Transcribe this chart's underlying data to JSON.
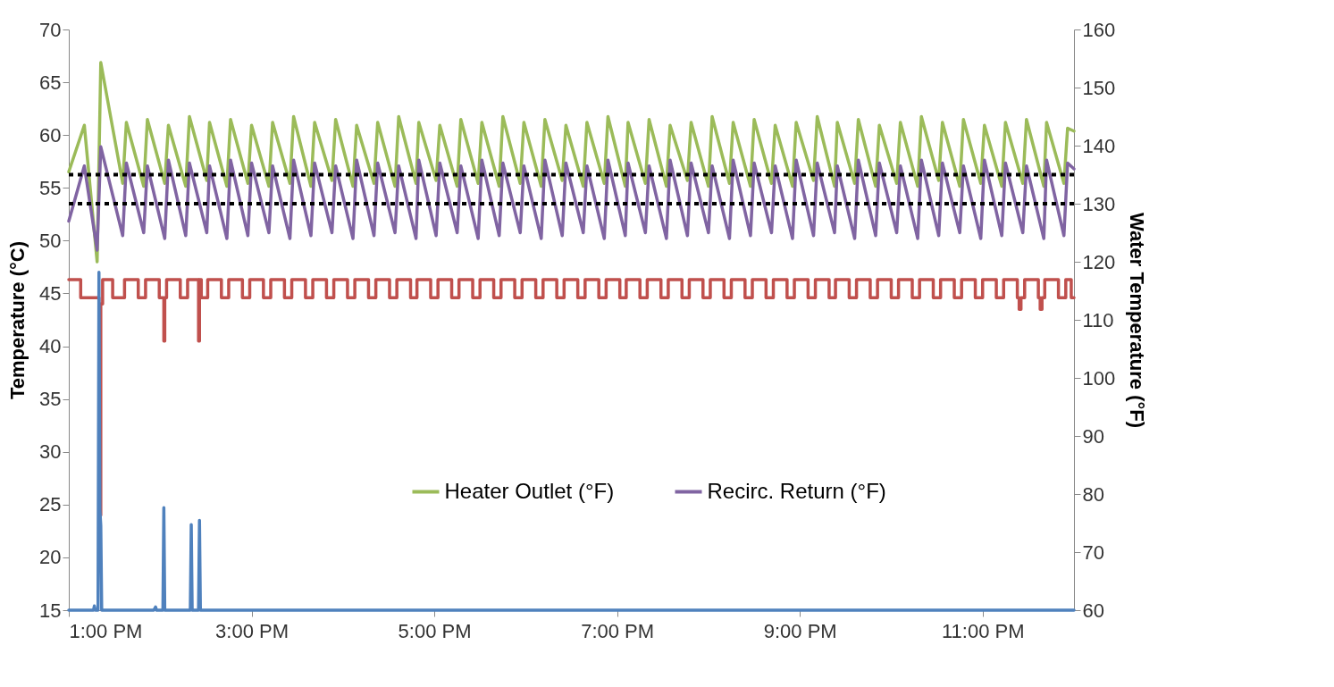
{
  "chart_data": {
    "type": "line",
    "ylabel": "Temperature (°C)",
    "y2label": "Water Temperature (°F)",
    "xlim": [
      13,
      24
    ],
    "xticks": [
      {
        "value": 13,
        "label": "1:00 PM"
      },
      {
        "value": 15,
        "label": "3:00 PM"
      },
      {
        "value": 17,
        "label": "5:00 PM"
      },
      {
        "value": 19,
        "label": "7:00 PM"
      },
      {
        "value": 21,
        "label": "9:00 PM"
      },
      {
        "value": 23,
        "label": "11:00 PM"
      }
    ],
    "ylim": [
      15,
      70
    ],
    "yticks": [
      15,
      20,
      25,
      30,
      35,
      40,
      45,
      50,
      55,
      60,
      65,
      70
    ],
    "y2lim": [
      60,
      160
    ],
    "y2ticks": [
      60,
      70,
      80,
      90,
      100,
      110,
      120,
      130,
      140,
      150,
      160
    ],
    "legend": "bottom",
    "series": [
      {
        "type": "step",
        "color": "#c0504d",
        "x": [
          13.0,
          13.13,
          13.33,
          13.35,
          13.37,
          13.48,
          13.61,
          13.76,
          13.84,
          13.99,
          14.04,
          14.05,
          14.07,
          14.22,
          14.3,
          14.42,
          14.43,
          14.45,
          14.52,
          14.67,
          14.75,
          14.9,
          14.98,
          15.13,
          15.21,
          15.36,
          15.44,
          15.59,
          15.67,
          15.82,
          15.9,
          16.05,
          16.13,
          16.28,
          16.36,
          16.51,
          16.59,
          16.74,
          16.81,
          16.96,
          17.04,
          17.19,
          17.27,
          17.42,
          17.5,
          17.65,
          17.73,
          17.88,
          17.96,
          18.11,
          18.19,
          18.34,
          18.42,
          18.57,
          18.65,
          18.8,
          18.88,
          19.03,
          19.1,
          19.25,
          19.33,
          19.48,
          19.56,
          19.71,
          19.79,
          19.94,
          20.02,
          20.17,
          20.25,
          20.4,
          20.48,
          20.63,
          20.71,
          20.86,
          20.94,
          21.09,
          21.17,
          21.32,
          21.39,
          21.54,
          21.62,
          21.77,
          21.85,
          22.0,
          22.08,
          22.23,
          22.31,
          22.46,
          22.54,
          22.69,
          22.77,
          22.92,
          23.0,
          23.15,
          23.23,
          23.38,
          23.4,
          23.42,
          23.46,
          23.61,
          23.63,
          23.65,
          23.68,
          23.83,
          23.91,
          23.97,
          24.0
        ],
        "values": [
          46.3,
          44.6,
          24,
          44,
          46.3,
          44.6,
          46.3,
          44.6,
          46.3,
          44.6,
          40.5,
          44.6,
          46.3,
          44.6,
          46.3,
          40.5,
          46.3,
          44.6,
          46.3,
          44.6,
          46.3,
          44.6,
          46.3,
          44.6,
          46.3,
          44.6,
          46.3,
          44.6,
          46.3,
          44.6,
          46.3,
          44.6,
          46.3,
          44.6,
          46.3,
          44.6,
          46.3,
          44.6,
          46.3,
          44.6,
          46.3,
          44.6,
          46.3,
          44.6,
          46.3,
          44.6,
          46.3,
          44.6,
          46.3,
          44.6,
          46.3,
          44.6,
          46.3,
          44.6,
          46.3,
          44.6,
          46.3,
          44.6,
          46.3,
          44.6,
          46.3,
          44.6,
          46.3,
          44.6,
          46.3,
          44.6,
          46.3,
          44.6,
          46.3,
          44.6,
          46.3,
          44.6,
          46.3,
          44.6,
          46.3,
          44.6,
          46.3,
          44.6,
          46.3,
          44.6,
          46.3,
          44.6,
          46.3,
          44.6,
          46.3,
          44.6,
          46.3,
          44.6,
          46.3,
          44.6,
          46.3,
          44.6,
          46.3,
          44.6,
          46.3,
          44.6,
          43.5,
          44.6,
          46.3,
          44.6,
          43.5,
          44.6,
          46.3,
          44.6,
          46.3,
          44.6,
          44.6
        ]
      },
      {
        "color": "#4f81bd",
        "x": [
          13.0,
          13.27,
          13.28,
          13.29,
          13.32,
          13.33,
          13.34,
          13.35,
          13.36,
          13.93,
          13.95,
          13.96,
          14.03,
          14.04,
          14.05,
          14.33,
          14.34,
          14.35,
          14.42,
          14.43,
          14.44,
          24.0
        ],
        "values": [
          15,
          15,
          15.4,
          15,
          15,
          47,
          24.5,
          23,
          15,
          15,
          15.3,
          15,
          15,
          24.7,
          15,
          15,
          23.1,
          15,
          15,
          23.5,
          15,
          15
        ]
      },
      {
        "name": "Heater Outlet (°F)",
        "axis": "y2",
        "color": "#9bbb59",
        "x": [
          13.0,
          13.17,
          13.31,
          13.35,
          13.59,
          13.63,
          13.82,
          13.86,
          14.05,
          14.09,
          14.28,
          14.32,
          14.51,
          14.54,
          14.73,
          14.77,
          14.96,
          15.0,
          15.19,
          15.23,
          15.42,
          15.46,
          15.65,
          15.69,
          15.88,
          15.92,
          16.11,
          16.15,
          16.34,
          16.38,
          16.57,
          16.61,
          16.8,
          16.83,
          17.02,
          17.06,
          17.25,
          17.29,
          17.48,
          17.52,
          17.71,
          17.75,
          17.94,
          17.98,
          18.17,
          18.21,
          18.4,
          18.44,
          18.63,
          18.67,
          18.86,
          18.9,
          19.09,
          19.12,
          19.31,
          19.35,
          19.54,
          19.58,
          19.77,
          19.81,
          20.0,
          20.04,
          20.23,
          20.27,
          20.46,
          20.5,
          20.69,
          20.73,
          20.92,
          20.96,
          21.15,
          21.19,
          21.38,
          21.41,
          21.6,
          21.64,
          21.83,
          21.87,
          22.06,
          22.1,
          22.29,
          22.33,
          22.52,
          22.56,
          22.75,
          22.79,
          22.98,
          23.02,
          23.21,
          23.25,
          23.44,
          23.48,
          23.67,
          23.7,
          23.89,
          23.93,
          24.0
        ],
        "values": [
          135.5,
          143.5,
          120,
          154.3,
          133.5,
          144,
          133,
          144.5,
          133.5,
          143.5,
          133,
          145,
          134,
          144,
          133,
          144.5,
          133.5,
          143.5,
          133,
          144,
          133.5,
          145,
          133,
          144,
          134,
          144.5,
          133,
          143.5,
          133.5,
          144,
          133,
          145,
          133.5,
          144,
          134,
          143.5,
          133,
          144.5,
          133.5,
          144,
          133,
          145,
          133.5,
          144,
          133,
          144.5,
          134,
          143.5,
          133,
          144,
          133.5,
          145,
          133,
          144,
          133.5,
          144.5,
          133,
          143.5,
          134,
          144,
          133,
          145,
          133.5,
          144,
          133,
          144.5,
          133.5,
          143.5,
          133,
          144,
          134,
          145,
          133,
          144,
          133.5,
          144.5,
          133,
          143.5,
          133.5,
          144,
          133,
          145,
          134,
          144,
          133,
          144.5,
          133.5,
          143.5,
          133,
          144,
          133.5,
          144.5,
          133,
          144,
          133.5,
          143,
          142.5
        ]
      },
      {
        "name": "Recirc. Return (°F)",
        "axis": "y2",
        "color": "#8064a2",
        "x": [
          13.0,
          13.17,
          13.31,
          13.35,
          13.59,
          13.63,
          13.82,
          13.86,
          14.05,
          14.09,
          14.28,
          14.32,
          14.51,
          14.54,
          14.73,
          14.77,
          14.96,
          15.0,
          15.19,
          15.23,
          15.42,
          15.46,
          15.65,
          15.69,
          15.88,
          15.92,
          16.11,
          16.15,
          16.34,
          16.38,
          16.57,
          16.61,
          16.8,
          16.83,
          17.02,
          17.06,
          17.25,
          17.29,
          17.48,
          17.52,
          17.71,
          17.75,
          17.94,
          17.98,
          18.17,
          18.21,
          18.4,
          18.44,
          18.63,
          18.67,
          18.86,
          18.9,
          19.09,
          19.12,
          19.31,
          19.35,
          19.54,
          19.58,
          19.77,
          19.81,
          20.0,
          20.04,
          20.23,
          20.27,
          20.46,
          20.5,
          20.69,
          20.73,
          20.92,
          20.96,
          21.15,
          21.19,
          21.38,
          21.41,
          21.6,
          21.64,
          21.83,
          21.87,
          22.06,
          22.1,
          22.29,
          22.33,
          22.52,
          22.56,
          22.75,
          22.79,
          22.98,
          23.02,
          23.21,
          23.25,
          23.44,
          23.48,
          23.67,
          23.7,
          23.89,
          23.93,
          24.0
        ],
        "values": [
          127,
          136.5,
          122,
          139.8,
          124.5,
          137,
          125,
          136.5,
          124,
          137.5,
          124.5,
          137,
          125,
          136.5,
          124,
          137.5,
          124.5,
          137,
          125,
          136.5,
          124,
          137.5,
          124.5,
          137,
          125,
          136.5,
          124,
          137.5,
          124.5,
          137,
          125,
          136.5,
          124,
          137.5,
          124.5,
          137,
          125,
          136.5,
          124,
          137.5,
          124.5,
          137,
          125,
          136.5,
          124,
          137.5,
          124.5,
          137,
          125,
          136.5,
          124,
          137.5,
          124.5,
          137,
          125,
          136.5,
          124,
          137.5,
          124.5,
          137,
          125,
          136.5,
          124,
          137.5,
          124.5,
          137,
          125,
          136.5,
          124,
          137.5,
          124.5,
          137,
          125,
          136.5,
          124,
          137.5,
          124.5,
          137,
          125,
          136.5,
          124,
          137.5,
          124.5,
          137,
          125,
          136.5,
          124,
          137.5,
          124.5,
          137,
          125,
          136.5,
          124,
          137.5,
          124.5,
          137,
          136
        ]
      }
    ],
    "ref_lines": [
      {
        "axis": "y2",
        "value": 135,
        "color": "#000000",
        "line_style": "dotted"
      },
      {
        "axis": "y2",
        "value": 130,
        "color": "#000000",
        "line_style": "dotted"
      }
    ]
  }
}
